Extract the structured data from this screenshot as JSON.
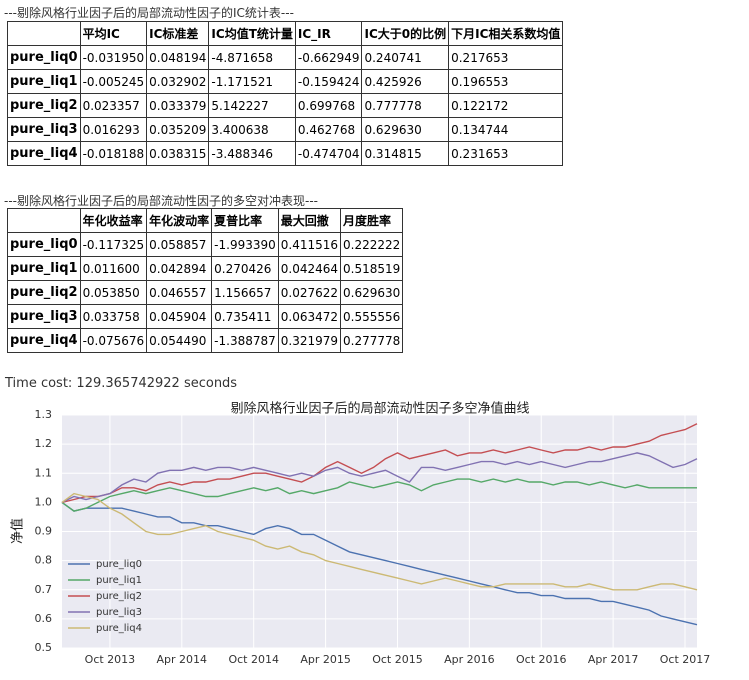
{
  "table1": {
    "title": "---剔除风格行业因子后的局部流动性因子的IC统计表---",
    "columns": [
      "平均IC",
      "IC标准差",
      "IC均值T统计量",
      "IC_IR",
      "IC大于0的比例",
      "下月IC相关系数均值"
    ],
    "rows": [
      [
        "pure_liq0",
        "-0.031950",
        "0.048194",
        "-4.871658",
        "-0.662949",
        "0.240741",
        "0.217653"
      ],
      [
        "pure_liq1",
        "-0.005245",
        "0.032902",
        "-1.171521",
        "-0.159424",
        "0.425926",
        "0.196553"
      ],
      [
        "pure_liq2",
        "0.023357",
        "0.033379",
        "5.142227",
        "0.699768",
        "0.777778",
        "0.122172"
      ],
      [
        "pure_liq3",
        "0.016293",
        "0.035209",
        "3.400638",
        "0.462768",
        "0.629630",
        "0.134744"
      ],
      [
        "pure_liq4",
        "-0.018188",
        "0.038315",
        "-3.488346",
        "-0.474704",
        "0.314815",
        "0.231653"
      ]
    ]
  },
  "table2": {
    "title": "---剔除风格行业因子后的局部流动性因子的多空对冲表现---",
    "columns": [
      "年化收益率",
      "年化波动率",
      "夏普比率",
      "最大回撤",
      "月度胜率"
    ],
    "rows": [
      [
        "pure_liq0",
        "-0.117325",
        "0.058857",
        "-1.993390",
        "0.411516",
        "0.222222"
      ],
      [
        "pure_liq1",
        "0.011600",
        "0.042894",
        "0.270426",
        "0.042464",
        "0.518519"
      ],
      [
        "pure_liq2",
        "0.053850",
        "0.046557",
        "1.156657",
        "0.027622",
        "0.629630"
      ],
      [
        "pure_liq3",
        "0.033758",
        "0.045904",
        "0.735411",
        "0.063472",
        "0.555556"
      ],
      [
        "pure_liq4",
        "-0.075676",
        "0.054490",
        "-1.388787",
        "0.321979",
        "0.277778"
      ]
    ]
  },
  "time_cost": "Time cost: 129.365742922 seconds",
  "chart_data": {
    "type": "line",
    "title": "剔除风格行业因子后的局部流动性因子多空净值曲线",
    "y_label": "净值",
    "x": [
      "2013-06",
      "2013-07",
      "2013-08",
      "2013-09",
      "2013-10",
      "2013-11",
      "2013-12",
      "2014-01",
      "2014-02",
      "2014-03",
      "2014-04",
      "2014-05",
      "2014-06",
      "2014-07",
      "2014-08",
      "2014-09",
      "2014-10",
      "2014-11",
      "2014-12",
      "2015-01",
      "2015-02",
      "2015-03",
      "2015-04",
      "2015-05",
      "2015-06",
      "2015-07",
      "2015-08",
      "2015-09",
      "2015-10",
      "2015-11",
      "2015-12",
      "2016-01",
      "2016-02",
      "2016-03",
      "2016-04",
      "2016-05",
      "2016-06",
      "2016-07",
      "2016-08",
      "2016-09",
      "2016-10",
      "2016-11",
      "2016-12",
      "2017-01",
      "2017-02",
      "2017-03",
      "2017-04",
      "2017-05",
      "2017-06",
      "2017-07",
      "2017-08",
      "2017-09",
      "2017-10",
      "2017-11"
    ],
    "xlim": [
      "2013-06",
      "2017-11"
    ],
    "xticks": [
      {
        "value": "2013-10",
        "label": "Oct 2013"
      },
      {
        "value": "2014-04",
        "label": "Apr 2014"
      },
      {
        "value": "2014-10",
        "label": "Oct 2014"
      },
      {
        "value": "2015-04",
        "label": "Apr 2015"
      },
      {
        "value": "2015-10",
        "label": "Oct 2015"
      },
      {
        "value": "2016-04",
        "label": "Apr 2016"
      },
      {
        "value": "2016-10",
        "label": "Oct 2016"
      },
      {
        "value": "2017-04",
        "label": "Apr 2017"
      },
      {
        "value": "2017-10",
        "label": "Oct 2017"
      }
    ],
    "ylim": [
      0.5,
      1.3
    ],
    "yticks": [
      0.5,
      0.6,
      0.7,
      0.8,
      0.9,
      {
        "value": 1,
        "label": "1.0"
      },
      1.1,
      1.2,
      1.3
    ],
    "grid": true,
    "legend": "lower left",
    "series": [
      {
        "name": "pure_liq0",
        "color": "#4c72b0",
        "values": [
          1.0,
          0.97,
          0.98,
          0.98,
          0.98,
          0.98,
          0.97,
          0.96,
          0.95,
          0.95,
          0.93,
          0.93,
          0.92,
          0.92,
          0.91,
          0.9,
          0.89,
          0.91,
          0.92,
          0.91,
          0.89,
          0.89,
          0.87,
          0.85,
          0.83,
          0.82,
          0.81,
          0.8,
          0.79,
          0.78,
          0.77,
          0.76,
          0.75,
          0.74,
          0.73,
          0.72,
          0.71,
          0.7,
          0.69,
          0.69,
          0.68,
          0.68,
          0.67,
          0.67,
          0.67,
          0.66,
          0.66,
          0.65,
          0.64,
          0.63,
          0.61,
          0.6,
          0.59,
          0.58
        ]
      },
      {
        "name": "pure_liq1",
        "color": "#55a868",
        "values": [
          1.0,
          0.97,
          0.98,
          1.0,
          1.02,
          1.03,
          1.04,
          1.03,
          1.04,
          1.05,
          1.04,
          1.03,
          1.02,
          1.02,
          1.03,
          1.04,
          1.05,
          1.04,
          1.05,
          1.03,
          1.04,
          1.03,
          1.04,
          1.05,
          1.07,
          1.06,
          1.05,
          1.06,
          1.07,
          1.06,
          1.04,
          1.06,
          1.07,
          1.08,
          1.08,
          1.07,
          1.08,
          1.07,
          1.08,
          1.07,
          1.07,
          1.06,
          1.07,
          1.07,
          1.06,
          1.07,
          1.06,
          1.05,
          1.06,
          1.05,
          1.05,
          1.05,
          1.05,
          1.05
        ]
      },
      {
        "name": "pure_liq2",
        "color": "#c44e52",
        "values": [
          1.0,
          1.01,
          1.02,
          1.02,
          1.03,
          1.05,
          1.05,
          1.04,
          1.06,
          1.07,
          1.06,
          1.07,
          1.07,
          1.08,
          1.08,
          1.09,
          1.1,
          1.1,
          1.09,
          1.08,
          1.07,
          1.09,
          1.12,
          1.14,
          1.12,
          1.1,
          1.12,
          1.15,
          1.17,
          1.15,
          1.16,
          1.17,
          1.18,
          1.16,
          1.17,
          1.17,
          1.18,
          1.17,
          1.18,
          1.19,
          1.18,
          1.17,
          1.18,
          1.18,
          1.19,
          1.18,
          1.19,
          1.19,
          1.2,
          1.21,
          1.23,
          1.24,
          1.25,
          1.27
        ]
      },
      {
        "name": "pure_liq3",
        "color": "#8172b2",
        "values": [
          1.0,
          1.02,
          1.01,
          1.02,
          1.03,
          1.06,
          1.08,
          1.07,
          1.1,
          1.11,
          1.11,
          1.12,
          1.11,
          1.12,
          1.12,
          1.11,
          1.12,
          1.11,
          1.1,
          1.09,
          1.1,
          1.09,
          1.11,
          1.12,
          1.1,
          1.09,
          1.1,
          1.11,
          1.09,
          1.07,
          1.12,
          1.12,
          1.11,
          1.12,
          1.13,
          1.14,
          1.14,
          1.13,
          1.14,
          1.13,
          1.14,
          1.13,
          1.12,
          1.13,
          1.14,
          1.14,
          1.15,
          1.16,
          1.17,
          1.16,
          1.14,
          1.12,
          1.13,
          1.15
        ]
      },
      {
        "name": "pure_liq4",
        "color": "#ccb974",
        "values": [
          1.0,
          1.03,
          1.02,
          1.01,
          0.98,
          0.96,
          0.93,
          0.9,
          0.89,
          0.89,
          0.9,
          0.91,
          0.92,
          0.9,
          0.89,
          0.88,
          0.87,
          0.85,
          0.84,
          0.85,
          0.83,
          0.82,
          0.8,
          0.79,
          0.78,
          0.77,
          0.76,
          0.75,
          0.74,
          0.73,
          0.72,
          0.73,
          0.74,
          0.73,
          0.72,
          0.71,
          0.71,
          0.72,
          0.72,
          0.72,
          0.72,
          0.72,
          0.71,
          0.71,
          0.72,
          0.71,
          0.7,
          0.7,
          0.7,
          0.71,
          0.72,
          0.72,
          0.71,
          0.7
        ]
      }
    ]
  }
}
